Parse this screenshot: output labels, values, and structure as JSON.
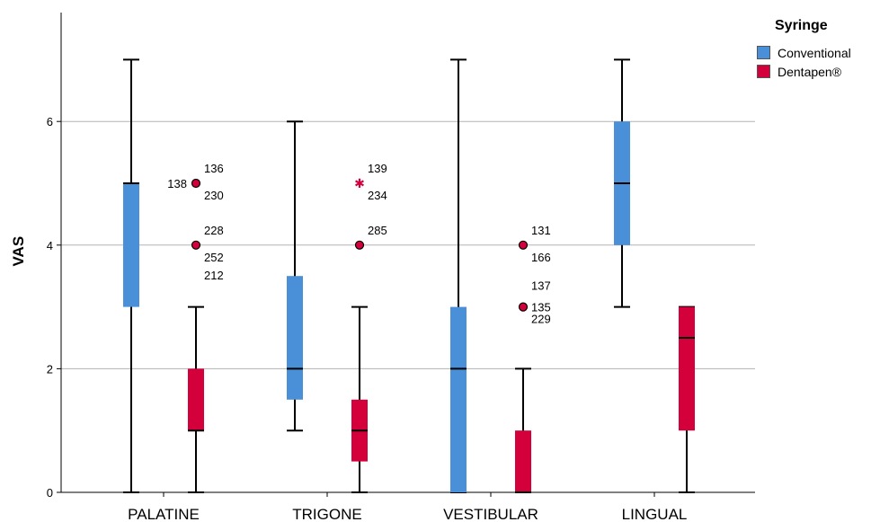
{
  "chart_data": {
    "type": "boxplot",
    "ylabel": "VAS",
    "ylim": [
      0,
      7.5
    ],
    "yticks": [
      0,
      2,
      4,
      6
    ],
    "grid": true,
    "categories": [
      "PALATINE",
      "TRIGONE",
      "VESTIBULAR",
      "LINGUAL"
    ],
    "legend": {
      "title": "Syringe",
      "position": "top-right",
      "items": [
        {
          "name": "Conventional",
          "color": "#4a90d9"
        },
        {
          "name": "Dentapen®",
          "color": "#d4003c"
        }
      ]
    },
    "series": [
      {
        "name": "Conventional",
        "color": "#4a90d9",
        "boxes": [
          {
            "category": "PALATINE",
            "min": 0,
            "q1": 3,
            "median": 5,
            "q3": 5,
            "max": 7
          },
          {
            "category": "TRIGONE",
            "min": 1,
            "q1": 1.5,
            "median": 2,
            "q3": 3.5,
            "max": 6
          },
          {
            "category": "VESTIBULAR",
            "min": 0,
            "q1": 0,
            "median": 2,
            "q3": 3,
            "max": 7
          },
          {
            "category": "LINGUAL",
            "min": 3,
            "q1": 4,
            "median": 5,
            "q3": 6,
            "max": 7
          }
        ]
      },
      {
        "name": "Dentapen®",
        "color": "#d4003c",
        "boxes": [
          {
            "category": "PALATINE",
            "min": 0,
            "q1": 1,
            "median": 1,
            "q3": 2,
            "max": 3
          },
          {
            "category": "TRIGONE",
            "min": 0,
            "q1": 0.5,
            "median": 1,
            "q3": 1.5,
            "max": 3
          },
          {
            "category": "VESTIBULAR",
            "min": 0,
            "q1": 0,
            "median": 0,
            "q3": 1,
            "max": 2
          },
          {
            "category": "LINGUAL",
            "min": 0,
            "q1": 1,
            "median": 2.5,
            "q3": 3,
            "max": 3
          }
        ]
      }
    ],
    "outliers": [
      {
        "category": "PALATINE",
        "series": "Dentapen®",
        "value": 5,
        "marker": "circle",
        "labels": [
          {
            "text": "138",
            "pos": "left"
          },
          {
            "text": "136",
            "pos": "upper-right"
          },
          {
            "text": "230",
            "pos": "lower-right"
          }
        ]
      },
      {
        "category": "PALATINE",
        "series": "Dentapen®",
        "value": 4,
        "marker": "circle",
        "labels": [
          {
            "text": "228",
            "pos": "upper-right"
          },
          {
            "text": "252",
            "pos": "lower-right"
          },
          {
            "text": "212",
            "pos": "lower-right-2"
          }
        ]
      },
      {
        "category": "TRIGONE",
        "series": "Dentapen®",
        "value": 5,
        "marker": "star",
        "labels": [
          {
            "text": "139",
            "pos": "upper-right"
          },
          {
            "text": "234",
            "pos": "lower-right"
          }
        ]
      },
      {
        "category": "TRIGONE",
        "series": "Dentapen®",
        "value": 4,
        "marker": "circle",
        "labels": [
          {
            "text": "285",
            "pos": "upper-right"
          }
        ]
      },
      {
        "category": "VESTIBULAR",
        "series": "Dentapen®",
        "value": 4,
        "marker": "circle",
        "labels": [
          {
            "text": "131",
            "pos": "upper-right"
          },
          {
            "text": "166",
            "pos": "lower-right"
          }
        ]
      },
      {
        "category": "VESTIBULAR",
        "series": "Dentapen®",
        "value": 3,
        "marker": "circle",
        "labels": [
          {
            "text": "137",
            "pos": "upper-right-2"
          },
          {
            "text": "135",
            "pos": "right"
          },
          {
            "text": "229",
            "pos": "lower-right"
          }
        ]
      }
    ]
  }
}
